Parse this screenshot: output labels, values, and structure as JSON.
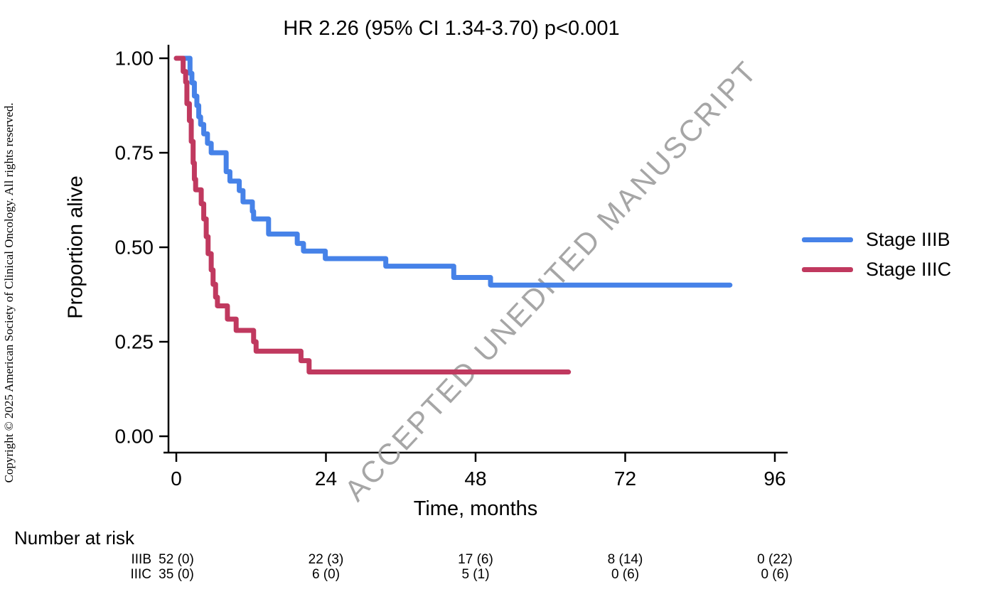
{
  "copyright_text": "Copyright © 2025 American Society of Clinical Oncology. All rights reserved.",
  "watermark": {
    "text": "ACCEPTED UNEDITED MANUSCRIPT",
    "color": "#a6a6a6",
    "angle_deg": -47
  },
  "chart_data": {
    "type": "line",
    "subtype": "kaplan-meier-step",
    "title": "HR 2.26 (95% CI 1.34-3.70) p<0.001",
    "xlabel": "Time, months",
    "ylabel": "Proportion alive",
    "xlim": [
      0,
      96
    ],
    "ylim": [
      0.0,
      1.0
    ],
    "x_ticks": [
      0,
      24,
      48,
      72,
      96
    ],
    "y_ticks": [
      1.0,
      0.75,
      0.5,
      0.25,
      0.0
    ],
    "y_tick_labels": [
      "1.00",
      "0.75",
      "0.50",
      "0.25",
      "0.00"
    ],
    "grid": false,
    "legend_position": "right-outside",
    "series": [
      {
        "name": "Stage IIIB",
        "color": "#4682e8",
        "end_month": 88.8,
        "points": [
          [
            0,
            1.0
          ],
          [
            2.2,
            0.96
          ],
          [
            2.5,
            0.935
          ],
          [
            2.9,
            0.9
          ],
          [
            3.3,
            0.875
          ],
          [
            3.6,
            0.845
          ],
          [
            3.9,
            0.825
          ],
          [
            4.4,
            0.8
          ],
          [
            5.0,
            0.775
          ],
          [
            5.6,
            0.75
          ],
          [
            8.0,
            0.7
          ],
          [
            8.6,
            0.675
          ],
          [
            10.1,
            0.65
          ],
          [
            10.7,
            0.62
          ],
          [
            12.2,
            0.595
          ],
          [
            12.4,
            0.575
          ],
          [
            14.8,
            0.535
          ],
          [
            19.4,
            0.51
          ],
          [
            20.4,
            0.49
          ],
          [
            23.9,
            0.47
          ],
          [
            33.6,
            0.45
          ],
          [
            44.5,
            0.42
          ],
          [
            50.4,
            0.4
          ]
        ]
      },
      {
        "name": "Stage IIIC",
        "color": "#c0395f",
        "end_month": 62.9,
        "points": [
          [
            0,
            1.0
          ],
          [
            1.1,
            0.965
          ],
          [
            1.5,
            0.937
          ],
          [
            1.7,
            0.88
          ],
          [
            2.1,
            0.835
          ],
          [
            2.4,
            0.78
          ],
          [
            2.7,
            0.723
          ],
          [
            2.9,
            0.68
          ],
          [
            3.1,
            0.652
          ],
          [
            4.0,
            0.615
          ],
          [
            4.4,
            0.575
          ],
          [
            4.8,
            0.528
          ],
          [
            5.1,
            0.483
          ],
          [
            5.6,
            0.44
          ],
          [
            5.9,
            0.402
          ],
          [
            6.3,
            0.368
          ],
          [
            6.6,
            0.345
          ],
          [
            8.2,
            0.31
          ],
          [
            9.6,
            0.28
          ],
          [
            12.4,
            0.25
          ],
          [
            12.8,
            0.225
          ],
          [
            20.0,
            0.2
          ],
          [
            21.3,
            0.17
          ]
        ]
      }
    ]
  },
  "legend": {
    "items": [
      {
        "label": "Stage IIIB",
        "color": "#4682e8"
      },
      {
        "label": "Stage IIIC",
        "color": "#c0395f"
      }
    ]
  },
  "risk_table": {
    "heading": "Number at risk",
    "time_points": [
      0,
      24,
      48,
      72,
      96
    ],
    "rows": [
      {
        "label": "IIIB",
        "values": [
          "52 (0)",
          "22 (3)",
          "17 (6)",
          "8 (14)",
          "0 (22)"
        ]
      },
      {
        "label": "IIIC",
        "values": [
          "35 (0)",
          "6 (0)",
          "5 (1)",
          "0 (6)",
          "0 (6)"
        ]
      }
    ]
  }
}
